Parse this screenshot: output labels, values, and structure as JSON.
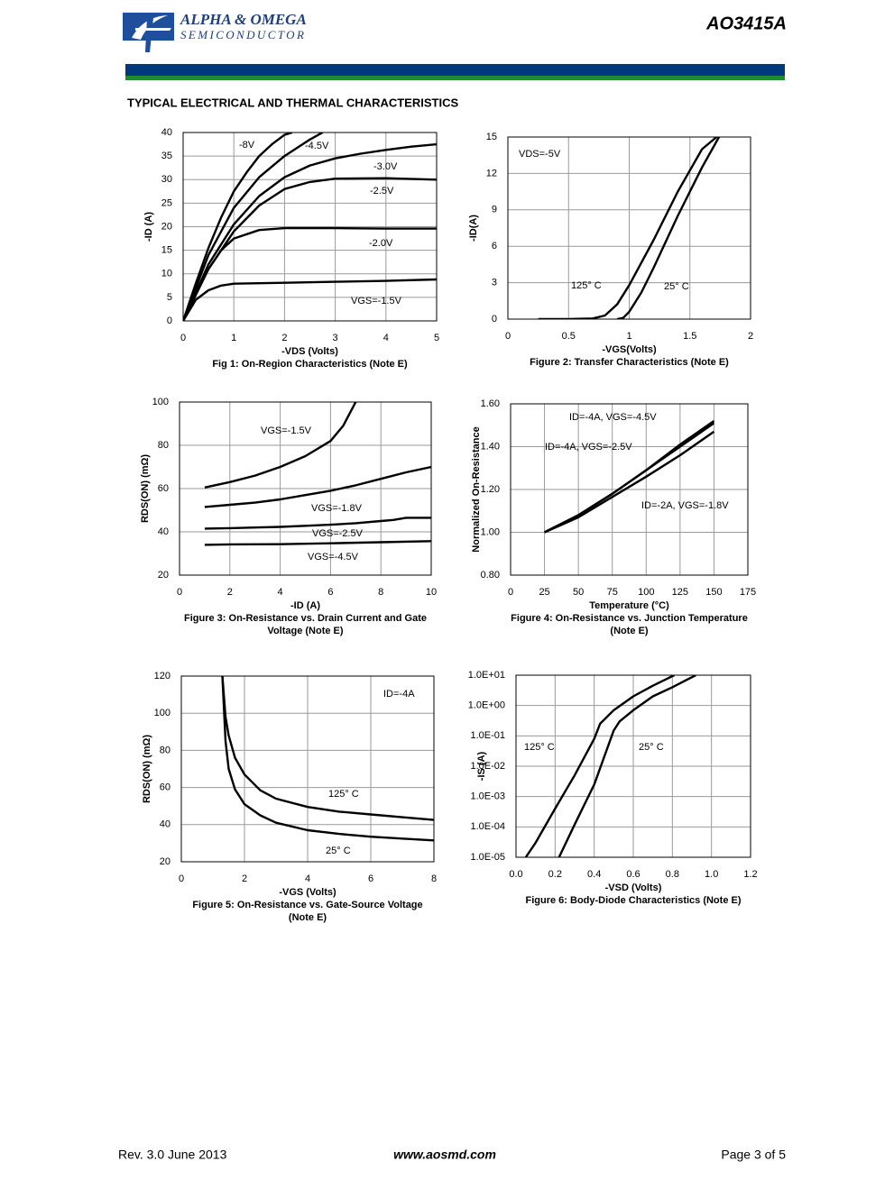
{
  "header": {
    "company": "ALPHA & OMEGA",
    "division": "SEMICONDUCTOR",
    "part": "AO3415A"
  },
  "section_title": "TYPICAL ELECTRICAL AND THERMAL CHARACTERISTICS",
  "footer": {
    "revision": "Rev. 3.0 June 2013",
    "website": "www.aosmd.com",
    "page": "Page 3 of 5"
  },
  "chart_data": [
    {
      "type": "line",
      "title": [
        "Fig 1: On-Region Characteristics (Note E)"
      ],
      "x_label": "-VDS (Volts)",
      "y_label": "-ID (A)",
      "xlim": [
        0,
        5
      ],
      "ylim": [
        0,
        40
      ],
      "xticks": [
        0,
        1,
        2,
        3,
        4,
        5
      ],
      "yticks": [
        0,
        5,
        10,
        15,
        20,
        25,
        30,
        35,
        40
      ],
      "grid": true,
      "color": "#000000",
      "series": [
        {
          "name": "-8V",
          "x": [
            0,
            0.25,
            0.5,
            0.75,
            1,
            1.25,
            1.5,
            1.75,
            2,
            2.15
          ],
          "values": [
            0,
            8,
            15.5,
            22,
            27.5,
            31.5,
            35,
            37.5,
            39.5,
            40
          ]
        },
        {
          "name": "-4.5V",
          "x": [
            0,
            0.5,
            1,
            1.5,
            2,
            2.5,
            2.75
          ],
          "values": [
            0,
            14,
            24,
            30.5,
            35,
            38.5,
            40
          ]
        },
        {
          "name": "-3.0V",
          "x": [
            0,
            0.5,
            1,
            1.5,
            2,
            2.5,
            3,
            3.5,
            4,
            4.5,
            5
          ],
          "values": [
            0,
            12,
            20.5,
            26.5,
            30.5,
            33,
            34.5,
            35.5,
            36.3,
            37,
            37.5
          ]
        },
        {
          "name": "-2.5V",
          "x": [
            0,
            0.5,
            1,
            1.5,
            2,
            2.5,
            3,
            4,
            5
          ],
          "values": [
            0,
            11,
            19,
            24.5,
            28,
            29.5,
            30.2,
            30.3,
            30
          ]
        },
        {
          "name": "-2.0V",
          "x": [
            0,
            0.25,
            0.5,
            0.75,
            1,
            1.5,
            2,
            3,
            4,
            5
          ],
          "values": [
            0,
            6,
            11,
            15,
            17.5,
            19.3,
            19.7,
            19.7,
            19.6,
            19.6
          ]
        },
        {
          "name": "VGS=-1.5V",
          "x": [
            0,
            0.25,
            0.5,
            0.75,
            1,
            2,
            3,
            4,
            5
          ],
          "values": [
            0,
            4.5,
            6.5,
            7.5,
            7.9,
            8.1,
            8.3,
            8.5,
            8.8
          ]
        }
      ]
    },
    {
      "type": "line",
      "title": [
        "Figure 2: Transfer Characteristics (Note E)"
      ],
      "x_label": "-VGS(Volts)",
      "y_label": "-ID(A)",
      "annotations": [
        "VDS=-5V"
      ],
      "xlim": [
        0,
        2
      ],
      "ylim": [
        0,
        15
      ],
      "xticks": [
        0,
        0.5,
        1,
        1.5,
        2
      ],
      "yticks": [
        0,
        3,
        6,
        9,
        12,
        15
      ],
      "grid": true,
      "color": "#000000",
      "series": [
        {
          "name": "125° C",
          "x": [
            0.25,
            0.5,
            0.7,
            0.8,
            0.9,
            1,
            1.2,
            1.4,
            1.6,
            1.72
          ],
          "values": [
            0,
            0,
            0.05,
            0.3,
            1.2,
            2.8,
            6.5,
            10.5,
            14,
            15
          ]
        },
        {
          "name": "25° C",
          "x": [
            0.9,
            0.95,
            1,
            1.1,
            1.2,
            1.4,
            1.6,
            1.74
          ],
          "values": [
            0,
            0.1,
            0.6,
            2.2,
            4.2,
            8.5,
            12.5,
            15
          ]
        }
      ]
    },
    {
      "type": "line",
      "title": [
        "Figure 3: On-Resistance vs. Drain Current and Gate",
        "Voltage (Note E)"
      ],
      "x_label": "-ID (A)",
      "y_label": "RDS(ON) (mΩ)",
      "xlim": [
        0,
        10
      ],
      "ylim": [
        20,
        100
      ],
      "xticks": [
        0,
        2,
        4,
        6,
        8,
        10
      ],
      "yticks": [
        20,
        40,
        60,
        80,
        100
      ],
      "grid": true,
      "color": "#000000",
      "series": [
        {
          "name": "VGS=-1.5V",
          "x": [
            1,
            2,
            3,
            4,
            5,
            6,
            6.5,
            7
          ],
          "values": [
            60.5,
            63,
            66,
            70,
            75,
            82,
            89,
            100
          ]
        },
        {
          "name": "VGS=-1.8V",
          "x": [
            1,
            2,
            3,
            4,
            5,
            6,
            7,
            8,
            9,
            10
          ],
          "values": [
            51.5,
            52.5,
            53.5,
            55,
            57,
            59,
            61.5,
            64.5,
            67.5,
            70
          ]
        },
        {
          "name": "VGS=-2.5V",
          "x": [
            1,
            2,
            3,
            4,
            5,
            6,
            7,
            8,
            8.5,
            9,
            10
          ],
          "values": [
            41.5,
            41.7,
            42,
            42.3,
            42.8,
            43.3,
            44,
            45,
            45.5,
            46.5,
            46.5
          ]
        },
        {
          "name": "VGS=-4.5V",
          "x": [
            1,
            2,
            4,
            6,
            8,
            10
          ],
          "values": [
            34,
            34.2,
            34.3,
            34.7,
            35.2,
            35.7
          ]
        }
      ]
    },
    {
      "type": "line",
      "title": [
        "Figure 4: On-Resistance vs. Junction Temperature",
        "(Note E)"
      ],
      "x_label": "Temperature (°C)",
      "y_label": "Normalized On-Resistance",
      "xlim": [
        0,
        175
      ],
      "ylim": [
        0.8,
        1.6
      ],
      "xticks": [
        0,
        25,
        50,
        75,
        100,
        125,
        150,
        175
      ],
      "yticks": [
        {
          "value": 0.8,
          "label": "0.80"
        },
        {
          "value": 1,
          "label": "1.00"
        },
        {
          "value": 1.2,
          "label": "1.20"
        },
        {
          "value": 1.4,
          "label": "1.40"
        },
        {
          "value": 1.6,
          "label": "1.60"
        }
      ],
      "grid": true,
      "color": "#000000",
      "series": [
        {
          "name": "ID=-4A, VGS=-4.5V",
          "x": [
            25,
            50,
            75,
            100,
            125,
            150
          ],
          "values": [
            1,
            1.08,
            1.18,
            1.29,
            1.41,
            1.52
          ]
        },
        {
          "name": "ID=-4A, VGS=-2.5V",
          "x": [
            25,
            50,
            75,
            100,
            125,
            150
          ],
          "values": [
            1,
            1.08,
            1.18,
            1.29,
            1.4,
            1.51
          ]
        },
        {
          "name": "ID=-2A, VGS=-1.8V",
          "x": [
            25,
            50,
            75,
            100,
            125,
            150
          ],
          "values": [
            1,
            1.07,
            1.165,
            1.26,
            1.36,
            1.47
          ]
        }
      ]
    },
    {
      "type": "line",
      "title": [
        "Figure 5: On-Resistance vs. Gate-Source Voltage",
        "(Note E)"
      ],
      "x_label": "-VGS (Volts)",
      "y_label": "RDS(ON) (mΩ)",
      "annotations": [
        "ID=-4A"
      ],
      "xlim": [
        0,
        8
      ],
      "ylim": [
        20,
        120
      ],
      "xticks": [
        0,
        2,
        4,
        6,
        8
      ],
      "yticks": [
        20,
        40,
        60,
        80,
        100,
        120
      ],
      "grid": true,
      "color": "#000000",
      "series": [
        {
          "name": "125° C",
          "x": [
            1.3,
            1.4,
            1.5,
            1.7,
            2,
            2.5,
            3,
            4,
            5,
            6,
            7,
            8
          ],
          "values": [
            120,
            98,
            88,
            76,
            67,
            58.5,
            54,
            49.5,
            47,
            45.5,
            44,
            42.5
          ]
        },
        {
          "name": "25° C",
          "x": [
            1.3,
            1.4,
            1.5,
            1.7,
            2,
            2.5,
            3,
            4,
            5,
            6,
            7,
            8
          ],
          "values": [
            120,
            85,
            70,
            59,
            51,
            45,
            41,
            37,
            35,
            33.5,
            32.5,
            31.5
          ]
        }
      ]
    },
    {
      "type": "line",
      "title": [
        "Figure 6: Body-Diode Characteristics (Note E)"
      ],
      "x_label": "-VSD (Volts)",
      "y_label": "-IS (A)",
      "log_y": true,
      "xlim": [
        0,
        1.2
      ],
      "ylim": [
        1e-05,
        10
      ],
      "xticks": [
        {
          "value": 0,
          "label": "0.0"
        },
        0.2,
        0.4,
        0.6,
        0.8,
        {
          "value": 1,
          "label": "1.0"
        },
        1.2
      ],
      "yticks": [
        {
          "value": 1e-05,
          "label": "1.0E-05"
        },
        {
          "value": 0.0001,
          "label": "1.0E-04"
        },
        {
          "value": 0.001,
          "label": "1.0E-03"
        },
        {
          "value": 0.01,
          "label": "1.0E-02"
        },
        {
          "value": 0.1,
          "label": "1.0E-01"
        },
        {
          "value": 1,
          "label": "1.0E+00"
        },
        {
          "value": 10,
          "label": "1.0E+01"
        }
      ],
      "grid": true,
      "color": "#000000",
      "series": [
        {
          "name": "125° C",
          "x": [
            0.05,
            0.1,
            0.2,
            0.3,
            0.4,
            0.43,
            0.5,
            0.6,
            0.7,
            0.81
          ],
          "values": [
            1e-05,
            3e-05,
            0.0004,
            0.005,
            0.08,
            0.25,
            0.7,
            2,
            4.5,
            10
          ]
        },
        {
          "name": "25° C",
          "x": [
            0.22,
            0.3,
            0.4,
            0.5,
            0.53,
            0.6,
            0.7,
            0.8,
            0.92
          ],
          "values": [
            1e-05,
            0.00012,
            0.0025,
            0.15,
            0.3,
            0.7,
            2,
            4,
            10
          ]
        }
      ]
    }
  ]
}
